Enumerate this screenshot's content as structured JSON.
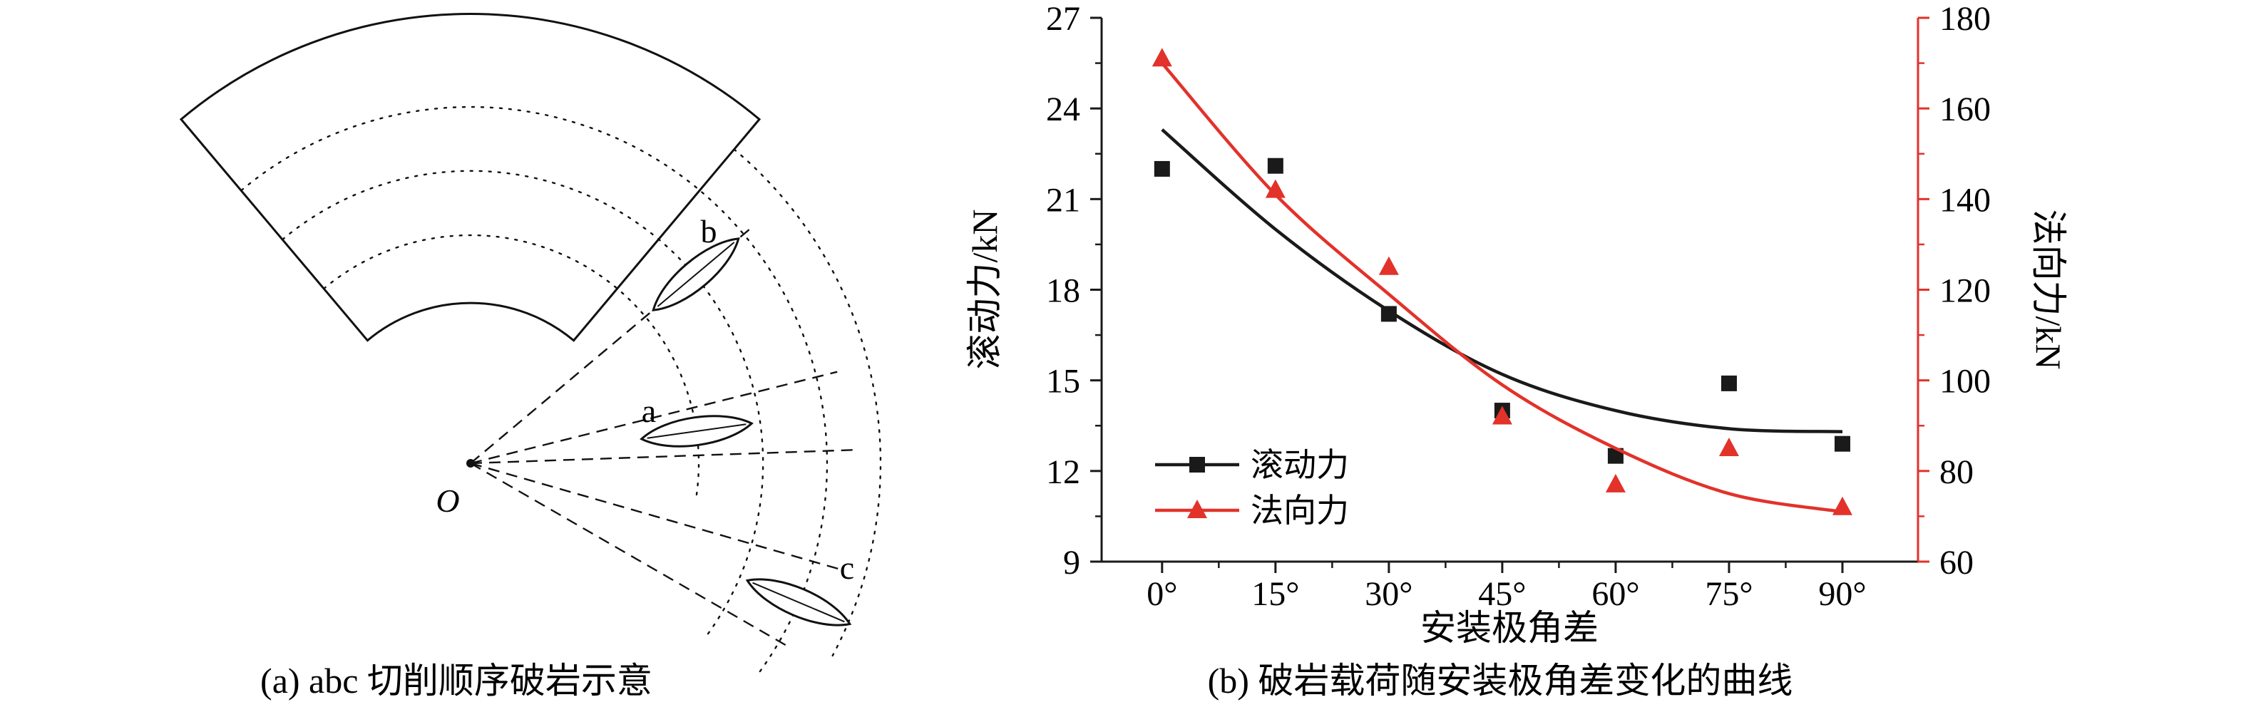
{
  "figure": {
    "panel_a": {
      "caption": "(a) abc 切削顺序破岩示意",
      "labels": {
        "origin": "O",
        "cutter_a": "a",
        "cutter_b": "b",
        "cutter_c": "c"
      }
    },
    "panel_b": {
      "caption": "(b) 破岩载荷随安装极角差变化的曲线"
    }
  },
  "chart_data": {
    "type": "scatter",
    "title": "",
    "x_label": "安装极角差",
    "x_values": [
      0,
      15,
      30,
      45,
      60,
      75,
      90
    ],
    "x_ticks": [
      "0°",
      "15°",
      "30°",
      "45°",
      "60°",
      "75°",
      "90°"
    ],
    "x_range": [
      -8,
      100
    ],
    "left_axis": {
      "label": "滚动力/kN",
      "range": [
        9,
        27
      ],
      "ticks": [
        9,
        12,
        15,
        18,
        21,
        24,
        27
      ],
      "color": "#000000"
    },
    "right_axis": {
      "label": "法向力/kN",
      "range": [
        60,
        180
      ],
      "ticks": [
        60,
        80,
        100,
        120,
        140,
        160,
        180
      ],
      "color": "#e2322a"
    },
    "series": [
      {
        "name": "滚动力",
        "axis": "left",
        "marker": "square",
        "color": "#1a1a1a",
        "values": [
          22.0,
          22.1,
          17.2,
          14.0,
          12.5,
          14.9,
          12.9
        ],
        "fit_x": [
          0,
          15,
          30,
          45,
          60,
          75,
          90
        ],
        "fit_y": [
          23.3,
          20.0,
          17.3,
          15.2,
          14.0,
          13.4,
          13.3
        ]
      },
      {
        "name": "法向力",
        "axis": "right",
        "marker": "triangle",
        "color": "#e2322a",
        "values": [
          171,
          142,
          125,
          92,
          77,
          85,
          72
        ],
        "fit_x": [
          0,
          15,
          30,
          45,
          60,
          75,
          90
        ],
        "fit_y": [
          170,
          141,
          119,
          99,
          85,
          75,
          71
        ]
      }
    ],
    "legend": {
      "items": [
        "滚动力",
        "法向力"
      ],
      "position": "inside-lower-left"
    },
    "grid": false
  }
}
